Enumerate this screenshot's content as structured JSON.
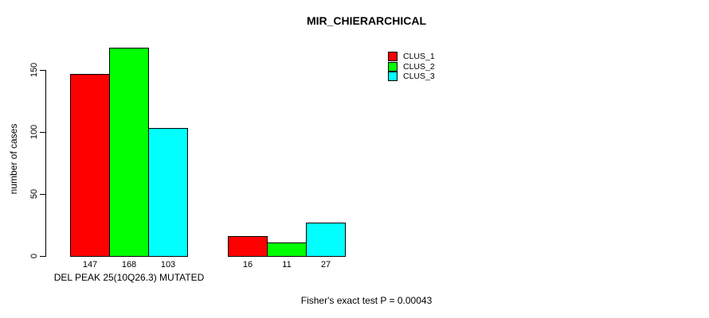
{
  "chart_data": {
    "type": "bar",
    "title": "MIR_CHIERARCHICAL",
    "ylabel": "number of cases",
    "categories": [
      "DEL PEAK 25(10Q26.3) MUTATED",
      ""
    ],
    "series": [
      {
        "name": "CLUS_1",
        "color": "#FF0000",
        "values": [
          147,
          16
        ]
      },
      {
        "name": "CLUS_2",
        "color": "#00FF00",
        "values": [
          168,
          11
        ]
      },
      {
        "name": "CLUS_3",
        "color": "#00FFFF",
        "values": [
          103,
          27
        ]
      }
    ],
    "bar_value_labels": [
      [
        "147",
        "168",
        "103"
      ],
      [
        "16",
        "11",
        "27"
      ]
    ],
    "yticks": [
      0,
      50,
      100,
      150
    ],
    "ylim": [
      0,
      175
    ],
    "grid": false,
    "legend_position": "top-right",
    "annotation": "Fisher's exact test P = 0.00043",
    "colors": {
      "CLUS_1": "#FF0000",
      "CLUS_2": "#00FF00",
      "CLUS_3": "#00FFFF",
      "axis": "#000000",
      "background": "#FFFFFF"
    }
  }
}
